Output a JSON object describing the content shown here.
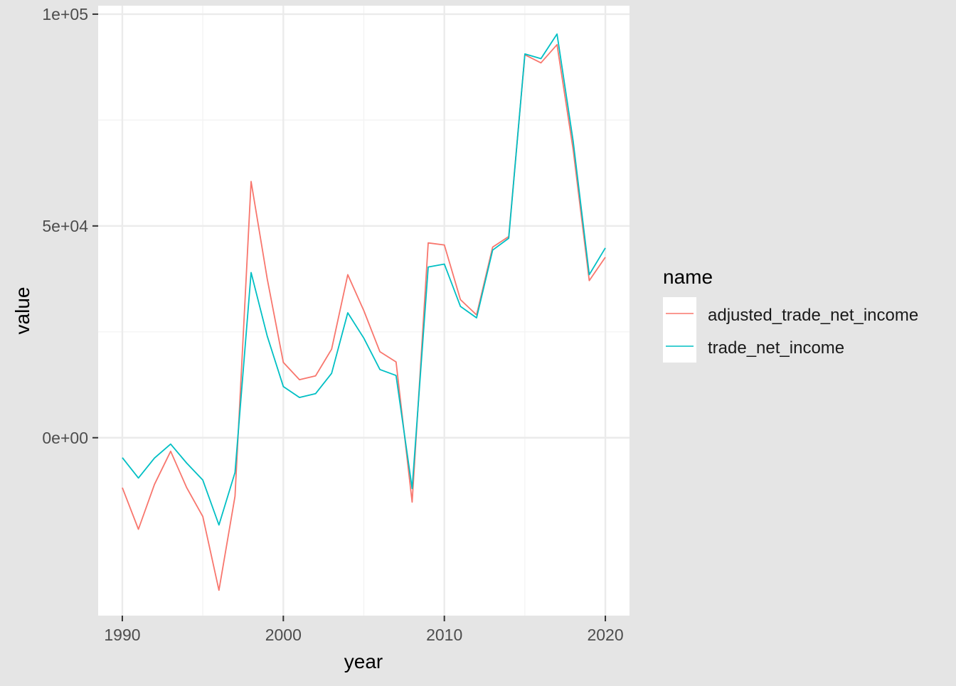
{
  "chart_data": {
    "type": "line",
    "xlabel": "year",
    "ylabel": "value",
    "xlim": [
      1988.5,
      2021.5
    ],
    "ylim": [
      -42000,
      102000
    ],
    "x_ticks": [
      1990,
      2000,
      2010,
      2020
    ],
    "x_tick_labels": [
      "1990",
      "2000",
      "2010",
      "2020"
    ],
    "y_ticks": [
      0,
      50000,
      100000
    ],
    "y_tick_labels": [
      "0e+00",
      "5e+04",
      "1e+05"
    ],
    "grid": true,
    "legend": {
      "title": "name",
      "placement": "right",
      "entries": [
        "adjusted_trade_net_income",
        "trade_net_income"
      ]
    },
    "x": [
      1990,
      1991,
      1992,
      1993,
      1994,
      1995,
      1996,
      1997,
      1998,
      1999,
      2000,
      2001,
      2002,
      2003,
      2004,
      2005,
      2006,
      2007,
      2008,
      2009,
      2010,
      2011,
      2012,
      2013,
      2014,
      2015,
      2016,
      2017,
      2018,
      2019,
      2020
    ],
    "series": [
      {
        "name": "adjusted_trade_net_income",
        "color": "#F8766D",
        "values": [
          -11800,
          -21600,
          -11000,
          -3200,
          -11800,
          -18600,
          -36000,
          -13800,
          60500,
          37500,
          17800,
          13700,
          14600,
          20900,
          38500,
          30000,
          20300,
          17900,
          -15200,
          46000,
          45500,
          32600,
          29000,
          45000,
          47500,
          90400,
          88500,
          92800,
          68000,
          37100,
          42600
        ]
      },
      {
        "name": "trade_net_income",
        "color": "#00BFC4",
        "values": [
          -4700,
          -9500,
          -4800,
          -1500,
          -6000,
          -10000,
          -20600,
          -8200,
          39000,
          24000,
          12100,
          9500,
          10400,
          15200,
          29500,
          23500,
          16100,
          14700,
          -12000,
          40300,
          41000,
          31000,
          28300,
          44300,
          47100,
          90600,
          89500,
          95300,
          70000,
          38500,
          44800
        ]
      }
    ]
  }
}
